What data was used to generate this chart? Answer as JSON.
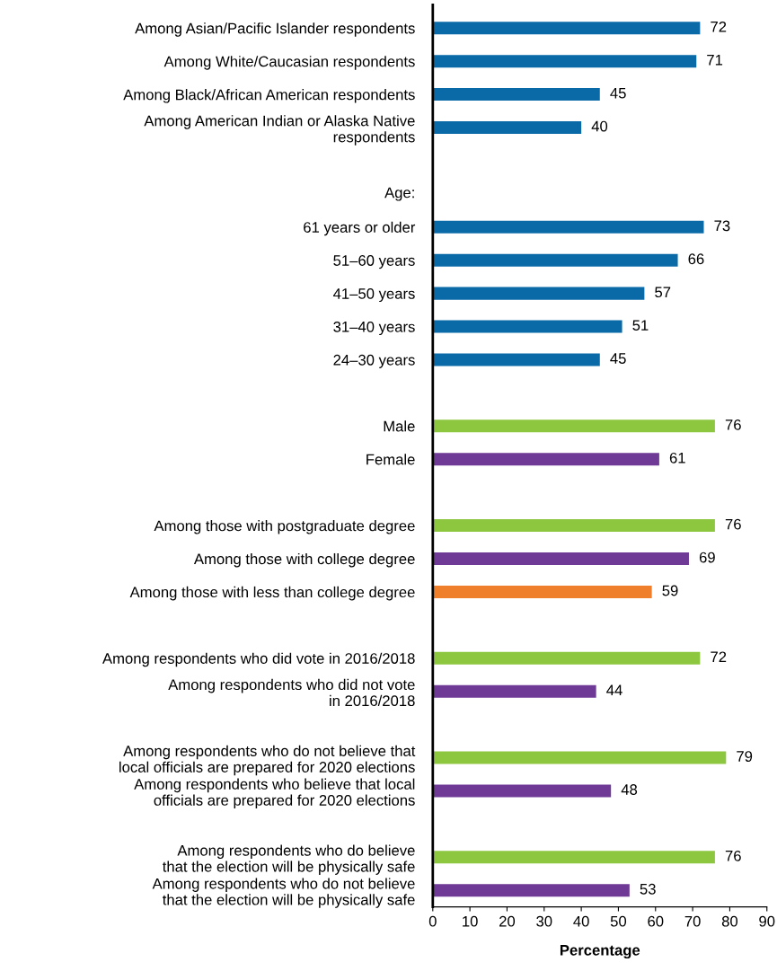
{
  "chart_data": {
    "type": "bar",
    "orientation": "horizontal",
    "xlabel": "Percentage",
    "categories": [
      "Among Asian/Pacific Islander respondents",
      "Among White/Caucasian respondents",
      "Among Black/African American respondents",
      "Among American Indian or Alaska Native\nrespondents",
      null,
      null,
      "61 years or older",
      "51–60 years",
      "41–50 years",
      "31–40 years",
      "24–30 years",
      null,
      "Male",
      "Female",
      null,
      "Among those with postgraduate degree",
      "Among those with college degree",
      "Among those with less than college degree",
      null,
      "Among respondents who did vote in 2016/2018",
      "Among respondents who did not vote\nin 2016/2018",
      null,
      "Among respondents who do not believe that\nlocal officials are prepared for 2020 elections",
      "Among respondents who believe that local\nofficials are prepared for 2020 elections",
      null,
      "Among respondents who do believe\nthat the election will be physically safe",
      "Among respondents who do not believe\nthat the election will be physically safe"
    ],
    "values": [
      72,
      71,
      45,
      40,
      null,
      null,
      73,
      66,
      57,
      51,
      45,
      null,
      76,
      61,
      null,
      76,
      69,
      59,
      null,
      72,
      44,
      null,
      79,
      48,
      null,
      76,
      53
    ],
    "colors": [
      "#0a6aa8",
      "#0a6aa8",
      "#0a6aa8",
      "#0a6aa8",
      null,
      null,
      "#0a6aa8",
      "#0a6aa8",
      "#0a6aa8",
      "#0a6aa8",
      "#0a6aa8",
      null,
      "#8dc63f",
      "#6e3a96",
      null,
      "#8dc63f",
      "#6e3a96",
      "#f07f2c",
      null,
      "#8dc63f",
      "#6e3a96",
      null,
      "#8dc63f",
      "#6e3a96",
      null,
      "#8dc63f",
      "#6e3a96"
    ],
    "annotations": [
      "Age:"
    ],
    "data_labels": true,
    "xlim": [
      0,
      90
    ],
    "xticks": [
      0,
      10,
      20,
      30,
      40,
      50,
      60,
      70,
      80,
      90
    ],
    "grid": false,
    "legend": false
  }
}
